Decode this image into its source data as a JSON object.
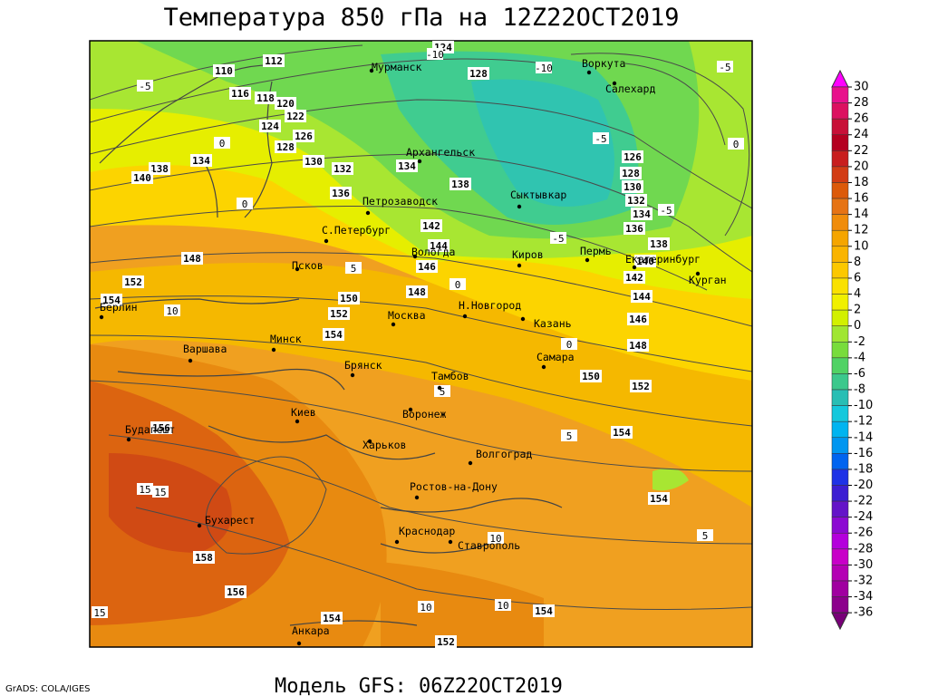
{
  "header": {
    "title": "Температура 850 гПа на 12Z22OCT2019"
  },
  "footer": {
    "model": "Модель GFS: 06Z22OCT2019",
    "credit": "GrADS: COLA/IGES"
  },
  "cities": [
    "Мурманск",
    "Воркута",
    "Салехард",
    "Архангельск",
    "Петрозаводск",
    "Сыктывкар",
    "С.Петербург",
    "Вологда",
    "Киров",
    "Пермь",
    "Екатеринбург",
    "Курган",
    "Псков",
    "Берлин",
    "Москва",
    "Н.Новгород",
    "Казань",
    "Минск",
    "Варшава",
    "Брянск",
    "Самара",
    "Тамбов",
    "Воронеж",
    "Киев",
    "Будапешт",
    "Харьков",
    "Волгоград",
    "Ростов-на-Дону",
    "Бухарест",
    "Краснодар",
    "Ставрополь",
    "Анкара"
  ],
  "height_labels": [
    124,
    128,
    110,
    112,
    116,
    118,
    120,
    122,
    124,
    126,
    128,
    130,
    132,
    134,
    134,
    136,
    138,
    138,
    140,
    142,
    144,
    146,
    148,
    148,
    150,
    152,
    152,
    154,
    154,
    126,
    128,
    130,
    132,
    134,
    136,
    138,
    140,
    142,
    144,
    146,
    148,
    150,
    152,
    154,
    154,
    156,
    158,
    156,
    154,
    154,
    152
  ],
  "temperature_labels": [
    -5,
    -5,
    0,
    0,
    -5,
    -5,
    -5,
    5,
    0,
    10,
    0,
    5,
    5,
    15,
    15,
    5,
    10,
    10,
    10,
    15,
    0,
    -10,
    -10
  ],
  "colorbar": {
    "ticks": [
      30,
      28,
      26,
      24,
      22,
      20,
      18,
      16,
      14,
      12,
      10,
      8,
      6,
      4,
      2,
      0,
      -2,
      -4,
      -6,
      -8,
      -10,
      -12,
      -14,
      -16,
      -18,
      -20,
      -22,
      -24,
      -26,
      -28,
      -30,
      -32,
      -34,
      -36
    ],
    "colors": [
      "#ff00ff",
      "#e8108c",
      "#dc1060",
      "#c81038",
      "#b40020",
      "#c81e1e",
      "#d23c14",
      "#dc5a0a",
      "#e67314",
      "#f08c0a",
      "#f5a500",
      "#fab400",
      "#fcc800",
      "#fae100",
      "#f0f000",
      "#d2f000",
      "#a0e632",
      "#78dc3c",
      "#50d264",
      "#3cc88c",
      "#28beb4",
      "#14c8dc",
      "#00b4f0",
      "#0096f0",
      "#0064f0",
      "#1e32e6",
      "#3c1ed2",
      "#6414c8",
      "#8c0ad2",
      "#b400dc",
      "#c800c8",
      "#b400b4",
      "#a000a0",
      "#8c008c",
      "#780078"
    ]
  }
}
